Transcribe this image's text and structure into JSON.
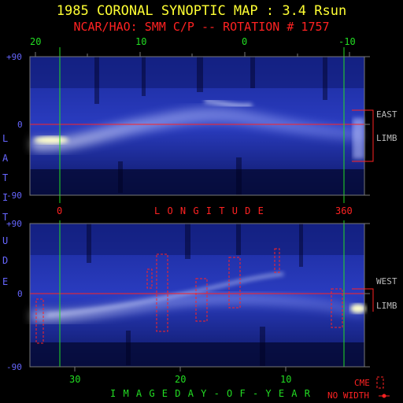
{
  "header": {
    "title": "1985 CORONAL SYNOPTIC MAP : 3.4 Rsun",
    "subtitle": "NCAR/HAO: SMM C/P -- ROTATION # 1757"
  },
  "top_panel": {
    "top_ticks": [
      "20",
      "10",
      "0",
      "-10"
    ],
    "bottom_ticks": [
      "0",
      "360"
    ],
    "y_ticks": [
      "+90",
      "0",
      "-90"
    ],
    "side_label_1": "EAST",
    "side_label_2": "LIMB"
  },
  "middle": {
    "longitude_label": "L O N G I T U D E",
    "latitude_letters": [
      "L",
      "A",
      "T",
      "I",
      "T",
      "U",
      "D",
      "E"
    ]
  },
  "bottom_panel": {
    "y_ticks": [
      "+90",
      "0",
      "-90"
    ],
    "x_ticks": [
      "30",
      "20",
      "10"
    ],
    "side_label_1": "WEST",
    "side_label_2": "LIMB",
    "xlabel": "I M A G E   D A Y - O F - Y E A R"
  },
  "legend": {
    "cme_label": "CME",
    "no_width_label": "NO WIDTH"
  },
  "colors": {
    "background": "#000000",
    "map_base": "#1a2a8a",
    "title": "#ffff33",
    "subtitle": "#ff2222",
    "green": "#22dd22",
    "blue_text": "#6666ff"
  }
}
